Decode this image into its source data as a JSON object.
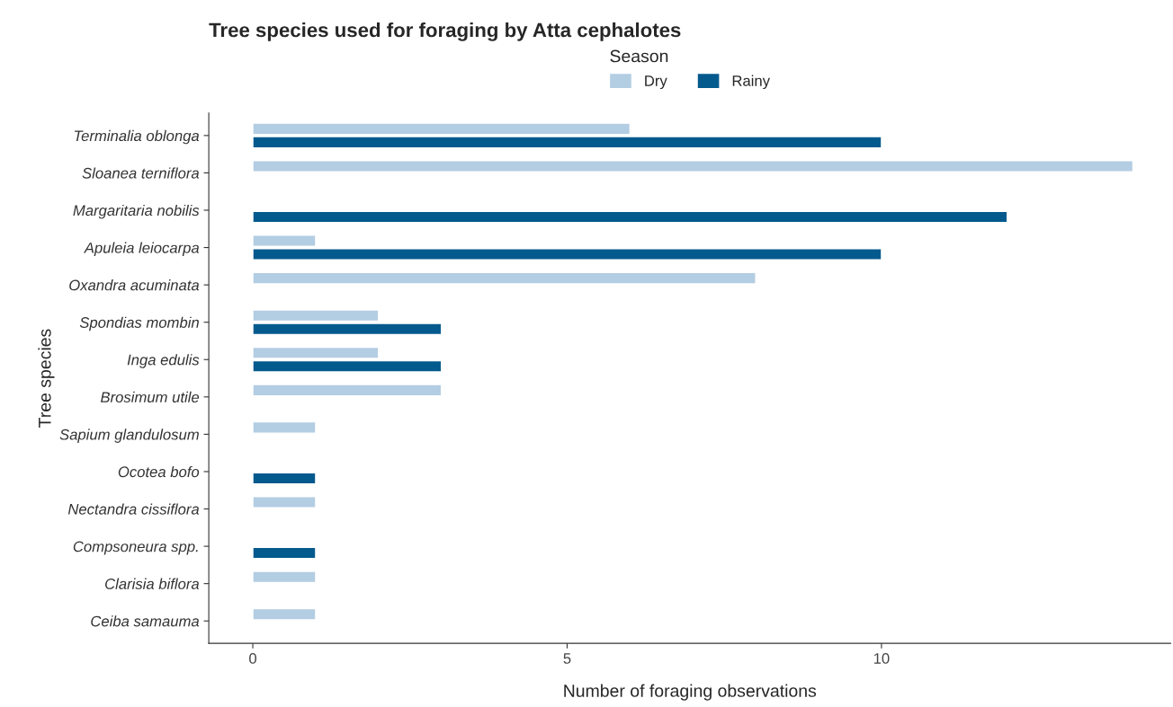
{
  "chart_data": {
    "type": "bar",
    "orientation": "horizontal",
    "title": "Tree species used for foraging by Atta cephalotes",
    "xlabel": "Number of foraging observations",
    "ylabel": "Tree species",
    "legend_title": "Season",
    "legend": "top",
    "categories": [
      "Terminalia oblonga",
      "Sloanea terniflora",
      "Margaritaria nobilis",
      "Apuleia leiocarpa",
      "Oxandra acuminata",
      "Spondias mombin",
      "Inga edulis",
      "Brosimum utile",
      "Sapium glandulosum",
      "Ocotea bofo",
      "Nectandra cissiflora",
      "Compsoneura spp.",
      "Clarisia biflora",
      "Ceiba samauma"
    ],
    "series": [
      {
        "name": "Dry",
        "color": "#b3cde3",
        "values": [
          6,
          14,
          null,
          1,
          8,
          2,
          2,
          3,
          1,
          null,
          1,
          null,
          1,
          1
        ]
      },
      {
        "name": "Rainy",
        "color": "#045a8d",
        "values": [
          10,
          null,
          12,
          10,
          null,
          3,
          3,
          null,
          null,
          1,
          null,
          1,
          null,
          null
        ]
      }
    ],
    "xlim": [
      -0.7,
      14.6
    ],
    "xticks": [
      0,
      5,
      10
    ],
    "grid": false
  }
}
